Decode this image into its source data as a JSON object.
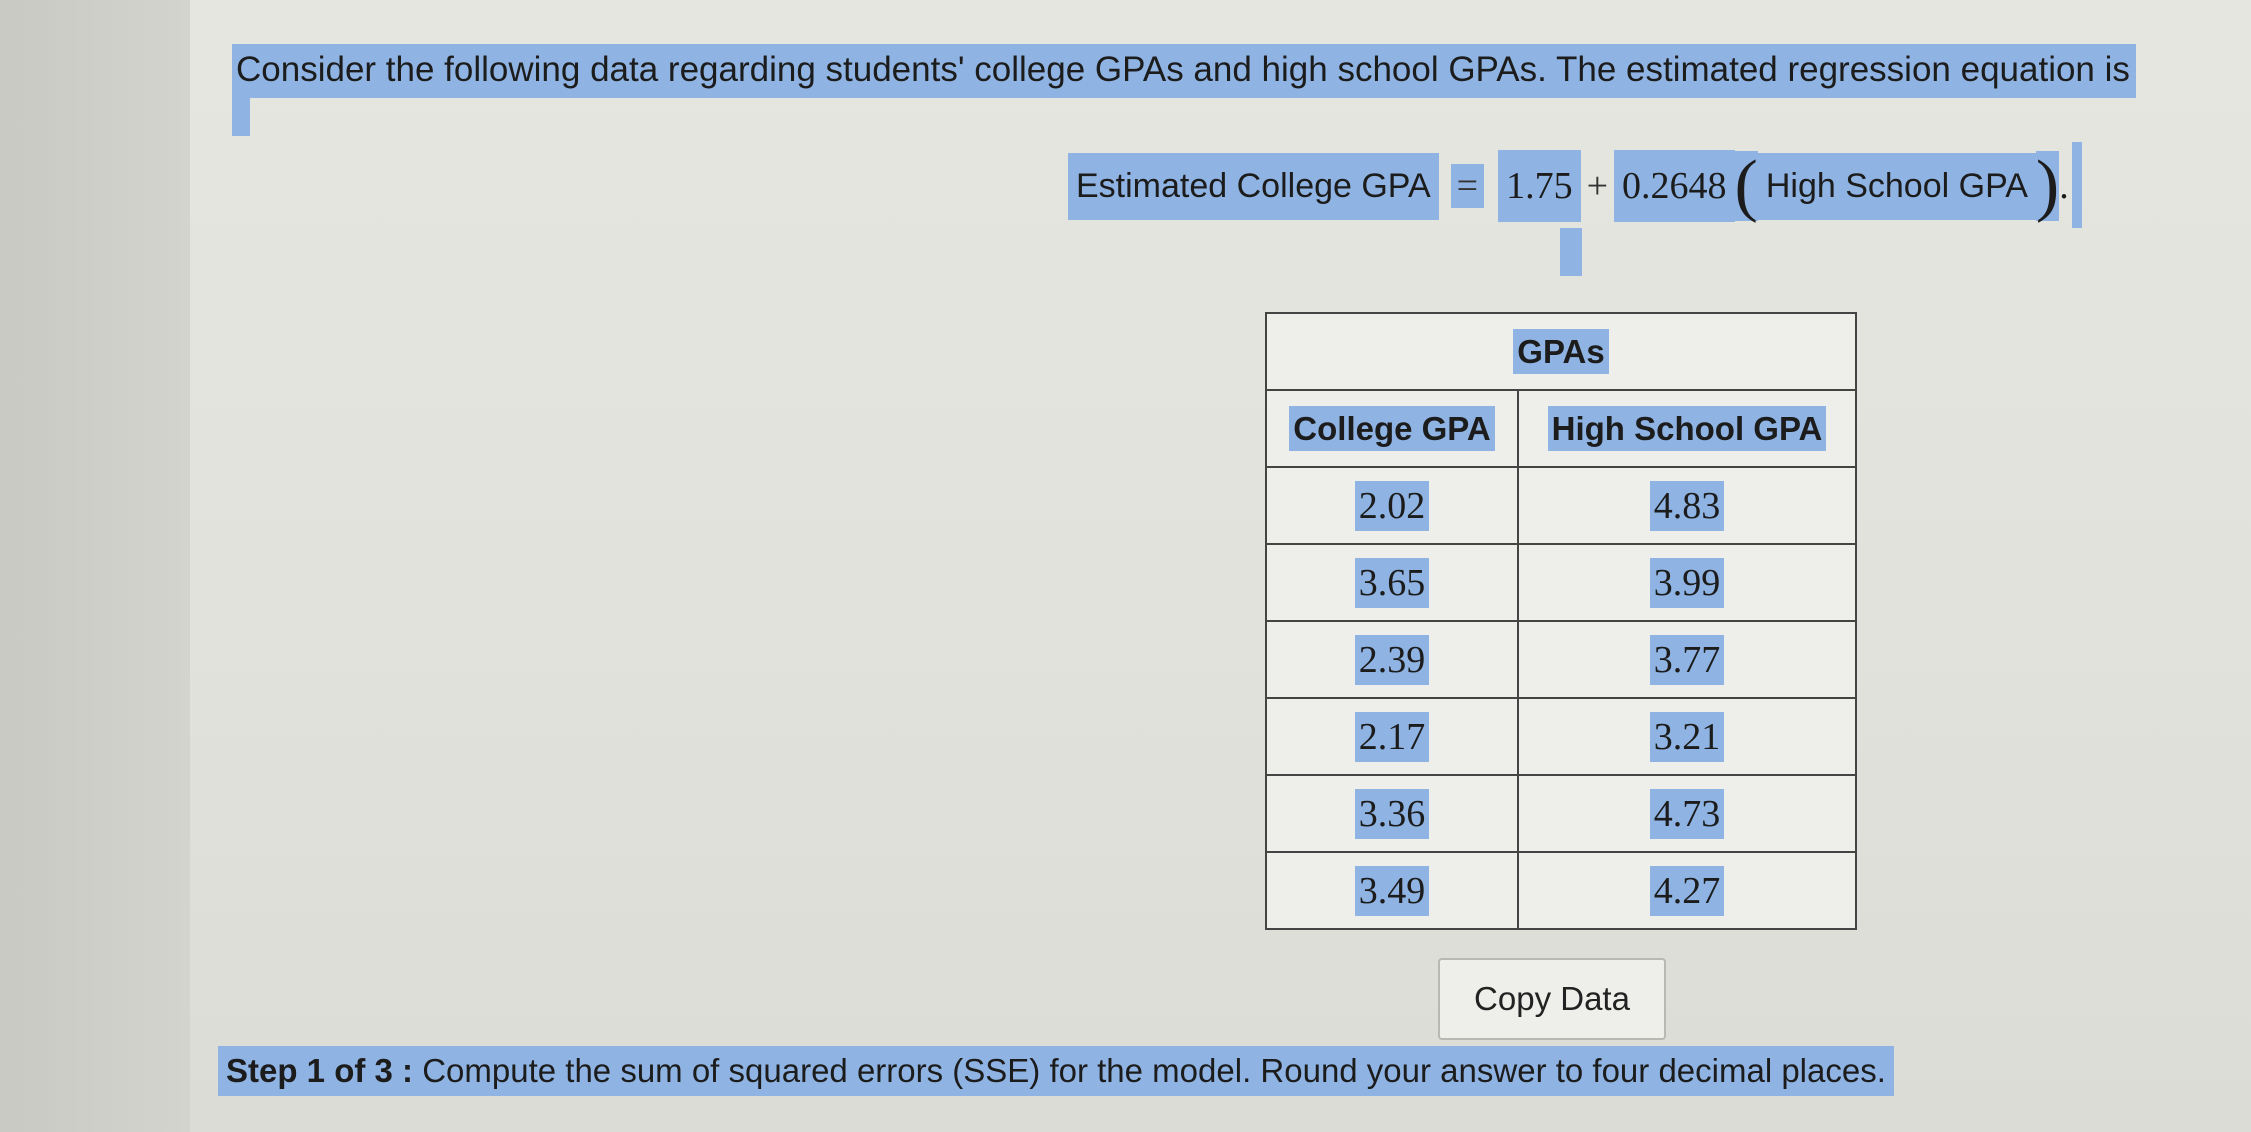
{
  "question": {
    "intro": "Consider the following data regarding students' college GPAs and high school GPAs. The estimated regression equation is"
  },
  "equation": {
    "lhs": "Estimated College GPA",
    "equals": "=",
    "intercept": "1.75",
    "plus": "+",
    "slope": "0.2648",
    "open_paren": "(",
    "variable": "High School GPA",
    "close_paren": ")",
    "period": "."
  },
  "table": {
    "caption": "GPAs",
    "headers": [
      "College GPA",
      "High School GPA"
    ],
    "rows": [
      [
        "2.02",
        "4.83"
      ],
      [
        "3.65",
        "3.99"
      ],
      [
        "2.39",
        "3.77"
      ],
      [
        "2.17",
        "3.21"
      ],
      [
        "3.36",
        "4.73"
      ],
      [
        "3.49",
        "4.27"
      ]
    ]
  },
  "copy_button": {
    "label": "Copy Data"
  },
  "step": {
    "prefix": "Step 1 of 3 :",
    "text": "Compute the sum of squared errors (SSE) for the model. Round your answer to four decimal places."
  },
  "colors": {
    "highlight": "#8fb4e3",
    "page": "#e4e4df",
    "text": "#1c1c1c"
  }
}
